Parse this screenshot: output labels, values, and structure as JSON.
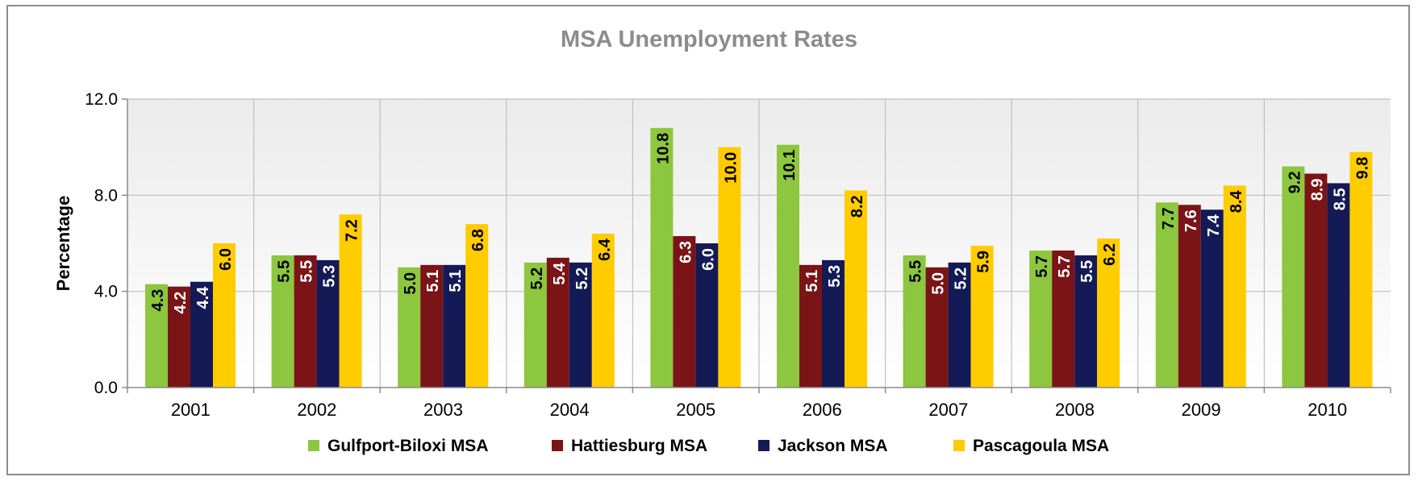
{
  "chart_data": {
    "type": "bar",
    "title": "MSA Unemployment Rates",
    "ylabel": "Percentage",
    "xlabel": "",
    "ylim": [
      0,
      12
    ],
    "yticks": [
      "0.0",
      "4.0",
      "8.0",
      "12.0"
    ],
    "ytick_values": [
      0,
      4,
      8,
      12
    ],
    "grid": true,
    "legend_position": "bottom",
    "categories": [
      "2001",
      "2002",
      "2003",
      "2004",
      "2005",
      "2006",
      "2007",
      "2008",
      "2009",
      "2010"
    ],
    "series": [
      {
        "name": "Gulfport-Biloxi MSA",
        "color": "#8dc63f",
        "label_color": "#000000",
        "values": [
          4.3,
          5.5,
          5.0,
          5.2,
          10.8,
          10.1,
          5.5,
          5.7,
          7.7,
          9.2
        ],
        "labels": [
          "4.3",
          "5.5",
          "5.0",
          "5.2",
          "10.8",
          "10.1",
          "5.5",
          "5.7",
          "7.7",
          "9.2"
        ]
      },
      {
        "name": "Hattiesburg MSA",
        "color": "#7b1416",
        "label_color": "#ffffff",
        "values": [
          4.2,
          5.5,
          5.1,
          5.4,
          6.3,
          5.1,
          5.0,
          5.7,
          7.6,
          8.9
        ],
        "labels": [
          "4.2",
          "5.5",
          "5.1",
          "5.4",
          "6.3",
          "5.1",
          "5.0",
          "5.7",
          "7.6",
          "8.9"
        ]
      },
      {
        "name": "Jackson MSA",
        "color": "#141a56",
        "label_color": "#ffffff",
        "values": [
          4.4,
          5.3,
          5.1,
          5.2,
          6.0,
          5.3,
          5.2,
          5.5,
          7.4,
          8.5
        ],
        "labels": [
          "4.4",
          "5.3",
          "5.1",
          "5.2",
          "6.0",
          "5.3",
          "5.2",
          "5.5",
          "7.4",
          "8.5"
        ]
      },
      {
        "name": "Pascagoula MSA",
        "color": "#ffcc00",
        "label_color": "#000000",
        "values": [
          6.0,
          7.2,
          6.8,
          6.4,
          10.0,
          8.2,
          5.9,
          6.2,
          8.4,
          9.8
        ],
        "labels": [
          "6.0",
          "7.2",
          "6.8",
          "6.4",
          "10.0",
          "8.2",
          "5.9",
          "6.2",
          "8.4",
          "9.8"
        ]
      }
    ],
    "colors": {
      "title": "#8c8c8c",
      "grid": "#bfbfbf",
      "axis": "#8c8c8c",
      "plot_bg_top": "#ebebeb",
      "plot_bg_bottom": "#ffffff"
    }
  }
}
